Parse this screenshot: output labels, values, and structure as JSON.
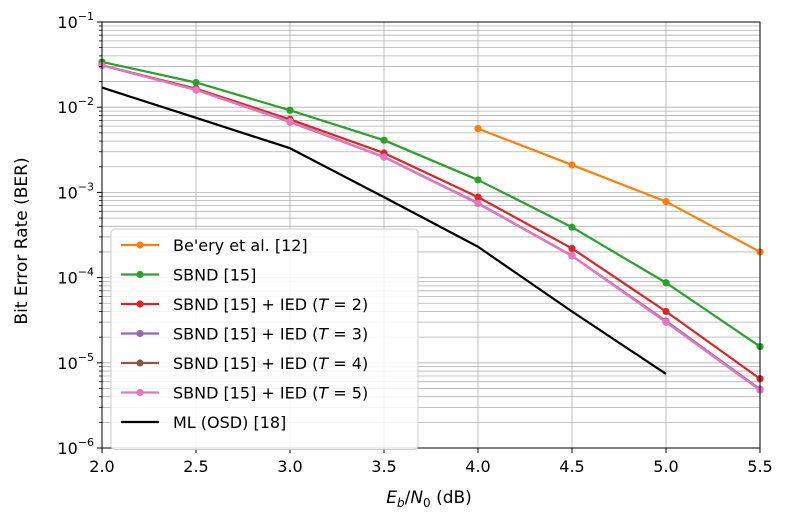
{
  "chart_data": {
    "type": "line",
    "title": "",
    "xlabel": "E_b/N_0 (dB)",
    "xlabel_parts": {
      "var1": "E",
      "sub1": "b",
      "slash": "/",
      "var2": "N",
      "sub2": "0",
      "unit": " (dB)"
    },
    "ylabel": "Bit Error Rate (BER)",
    "xlim": [
      2.0,
      5.5
    ],
    "ylim": [
      1e-06,
      0.1
    ],
    "yscale": "log",
    "grid": true,
    "grid_minor": true,
    "legend_position": "lower-left",
    "x_ticks": [
      {
        "value": 2.0,
        "label": "2.0"
      },
      {
        "value": 2.5,
        "label": "2.5"
      },
      {
        "value": 3.0,
        "label": "3.0"
      },
      {
        "value": 3.5,
        "label": "3.5"
      },
      {
        "value": 4.0,
        "label": "4.0"
      },
      {
        "value": 4.5,
        "label": "4.5"
      },
      {
        "value": 5.0,
        "label": "5.0"
      },
      {
        "value": 5.5,
        "label": "5.5"
      }
    ],
    "y_ticks": [
      {
        "value": 1e-06,
        "base": "10",
        "exp": "−6"
      },
      {
        "value": 1e-05,
        "base": "10",
        "exp": "−5"
      },
      {
        "value": 0.0001,
        "base": "10",
        "exp": "−4"
      },
      {
        "value": 0.001,
        "base": "10",
        "exp": "−3"
      },
      {
        "value": 0.01,
        "base": "10",
        "exp": "−2"
      },
      {
        "value": 0.1,
        "base": "10",
        "exp": "−1"
      }
    ],
    "series": [
      {
        "name": "Be'ery et al. [12]",
        "label": {
          "pre": "Be'ery et al. [12]",
          "var": "",
          "post": ""
        },
        "color": "#ff7f0e",
        "marker": true,
        "x": [
          4.0,
          4.5,
          5.0,
          5.5
        ],
        "y": [
          0.0056,
          0.0021,
          0.00078,
          0.0002
        ]
      },
      {
        "name": "SBND [15]",
        "label": {
          "pre": "SBND [15]",
          "var": "",
          "post": ""
        },
        "color": "#2ca02c",
        "marker": true,
        "x": [
          2.0,
          2.5,
          3.0,
          3.5,
          4.0,
          4.5,
          5.0,
          5.5
        ],
        "y": [
          0.034,
          0.0195,
          0.0092,
          0.0041,
          0.0014,
          0.00039,
          8.7e-05,
          1.55e-05
        ]
      },
      {
        "name": "SBND [15] + IED (T = 2)",
        "label": {
          "pre": "SBND [15] + IED (",
          "var": "T",
          "post": " = 2)"
        },
        "color": "#d62728",
        "marker": true,
        "x": [
          2.0,
          2.5,
          3.0,
          3.5,
          4.0,
          4.5,
          5.0,
          5.5
        ],
        "y": [
          0.031,
          0.0165,
          0.0072,
          0.0029,
          0.00088,
          0.00022,
          4e-05,
          6.5e-06
        ]
      },
      {
        "name": "SBND [15] + IED (T = 3)",
        "label": {
          "pre": "SBND [15] + IED (",
          "var": "T",
          "post": " = 3)"
        },
        "color": "#9467bd",
        "marker": true,
        "x": [
          2.0,
          2.5,
          3.0,
          3.5,
          4.0,
          4.5,
          5.0,
          5.5
        ],
        "y": [
          0.031,
          0.016,
          0.0067,
          0.0026,
          0.00075,
          0.00018,
          3.1e-05,
          4.9e-06
        ]
      },
      {
        "name": "SBND [15] + IED (T = 4)",
        "label": {
          "pre": "SBND [15] + IED (",
          "var": "T",
          "post": " = 4)"
        },
        "color": "#8c564b",
        "marker": true,
        "x": [
          2.0,
          2.5,
          3.0,
          3.5,
          4.0,
          4.5,
          5.0,
          5.5
        ],
        "y": [
          0.031,
          0.016,
          0.0068,
          0.0026,
          0.00074,
          0.00018,
          3e-05,
          4.8e-06
        ]
      },
      {
        "name": "SBND [15] + IED (T = 5)",
        "label": {
          "pre": "SBND [15] + IED (",
          "var": "T",
          "post": " = 5)"
        },
        "color": "#e377c2",
        "marker": true,
        "x": [
          2.0,
          2.5,
          3.0,
          3.5,
          4.0,
          4.5,
          5.0,
          5.5
        ],
        "y": [
          0.031,
          0.016,
          0.0068,
          0.0026,
          0.00074,
          0.00018,
          3e-05,
          4.8e-06
        ]
      },
      {
        "name": "ML (OSD) [18]",
        "label": {
          "pre": "ML (OSD) [18]",
          "var": "",
          "post": ""
        },
        "color": "#000000",
        "marker": false,
        "x": [
          2.0,
          2.5,
          3.0,
          3.5,
          4.0,
          4.5,
          5.0
        ],
        "y": [
          0.017,
          0.0075,
          0.0033,
          0.00088,
          0.00023,
          4e-05,
          7.4e-06
        ]
      }
    ]
  }
}
